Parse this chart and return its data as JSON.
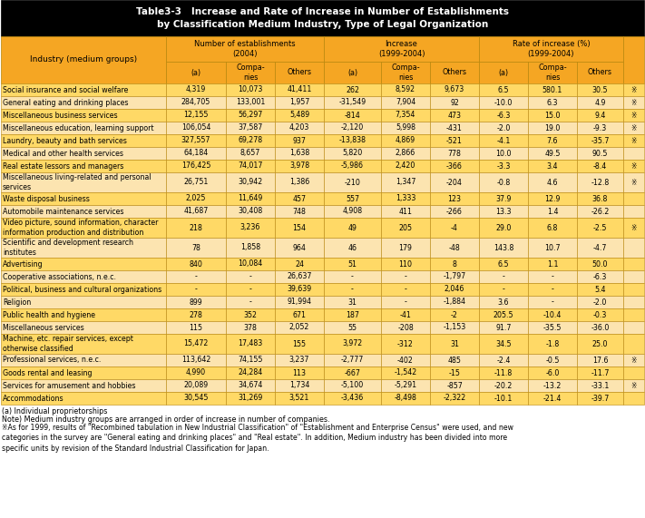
{
  "title_line1": "Table3-3   Increase and Rate of Increase in Number of Establishments",
  "title_line2": "by Classification Medium Industry, Type of Legal Organization",
  "col_groups": [
    "Number of establishments\n(2004)",
    "Increase\n(1999-2004)",
    "Rate of increase (%)\n(1999-2004)"
  ],
  "col_sub": [
    "(a)",
    "Compa-\nnies",
    "Others",
    "(a)",
    "Compa-\nnies",
    "Others",
    "(a)",
    "Compa-\nnies",
    "Others"
  ],
  "row_label_col": "Industry (medium groups)",
  "rows": [
    {
      "label": "Social insurance and social welfare",
      "values": [
        "4,319",
        "10,073",
        "41,411",
        "262",
        "8,592",
        "9,673",
        "6.5",
        "580.1",
        "30.5"
      ],
      "mark": true,
      "twolines": false
    },
    {
      "label": "General eating and drinking places",
      "values": [
        "284,705",
        "133,001",
        "1,957",
        "-31,549",
        "7,904",
        "92",
        "-10.0",
        "6.3",
        "4.9"
      ],
      "mark": true,
      "twolines": false
    },
    {
      "label": "Miscellaneous business services",
      "values": [
        "12,155",
        "56,297",
        "5,489",
        "-814",
        "7,354",
        "473",
        "-6.3",
        "15.0",
        "9.4"
      ],
      "mark": true,
      "twolines": false
    },
    {
      "label": "Miscellaneous education, learning support",
      "values": [
        "106,054",
        "37,587",
        "4,203",
        "-2,120",
        "5,998",
        "-431",
        "-2.0",
        "19.0",
        "-9.3"
      ],
      "mark": true,
      "twolines": false
    },
    {
      "label": "Laundry, beauty and bath services",
      "values": [
        "327,557",
        "69,278",
        "937",
        "-13,838",
        "4,869",
        "-521",
        "-4.1",
        "7.6",
        "-35.7"
      ],
      "mark": true,
      "twolines": false
    },
    {
      "label": "Medical and other health services",
      "values": [
        "64,184",
        "8,657",
        "1,638",
        "5,820",
        "2,866",
        "778",
        "10.0",
        "49.5",
        "90.5"
      ],
      "mark": false,
      "twolines": false
    },
    {
      "label": "Real estate lessors and managers",
      "values": [
        "176,425",
        "74,017",
        "3,978",
        "-5,986",
        "2,420",
        "-366",
        "-3.3",
        "3.4",
        "-8.4"
      ],
      "mark": true,
      "twolines": false
    },
    {
      "label": "Miscellaneous living-related and personal\nservices",
      "values": [
        "26,751",
        "30,942",
        "1,386",
        "-210",
        "1,347",
        "-204",
        "-0.8",
        "4.6",
        "-12.8"
      ],
      "mark": true,
      "twolines": true
    },
    {
      "label": "Waste disposal business",
      "values": [
        "2,025",
        "11,649",
        "457",
        "557",
        "1,333",
        "123",
        "37.9",
        "12.9",
        "36.8"
      ],
      "mark": false,
      "twolines": false
    },
    {
      "label": "Automobile maintenance services",
      "values": [
        "41,687",
        "30,408",
        "748",
        "4,908",
        "411",
        "-266",
        "13.3",
        "1.4",
        "-26.2"
      ],
      "mark": false,
      "twolines": false
    },
    {
      "label": "Video picture, sound information, character\ninformation production and distribution",
      "values": [
        "218",
        "3,236",
        "154",
        "49",
        "205",
        "-4",
        "29.0",
        "6.8",
        "-2.5"
      ],
      "mark": true,
      "twolines": true
    },
    {
      "label": "Scientific and development research\ninstitutes",
      "values": [
        "78",
        "1,858",
        "964",
        "46",
        "179",
        "-48",
        "143.8",
        "10.7",
        "-4.7"
      ],
      "mark": false,
      "twolines": true
    },
    {
      "label": "Advertising",
      "values": [
        "840",
        "10,084",
        "24",
        "51",
        "110",
        "8",
        "6.5",
        "1.1",
        "50.0"
      ],
      "mark": false,
      "twolines": false
    },
    {
      "label": "Cooperative associations, n.e.c.",
      "values": [
        "-",
        "-",
        "26,637",
        "-",
        "-",
        "-1,797",
        "-",
        "-",
        "-6.3"
      ],
      "mark": false,
      "twolines": false
    },
    {
      "label": "Political, business and cultural organizations",
      "values": [
        "-",
        "-",
        "39,639",
        "-",
        "-",
        "2,046",
        "-",
        "-",
        "5.4"
      ],
      "mark": false,
      "twolines": false
    },
    {
      "label": "Religion",
      "values": [
        "899",
        "-",
        "91,994",
        "31",
        "-",
        "-1,884",
        "3.6",
        "-",
        "-2.0"
      ],
      "mark": false,
      "twolines": false
    },
    {
      "label": "Public health and hygiene",
      "values": [
        "278",
        "352",
        "671",
        "187",
        "-41",
        "-2",
        "205.5",
        "-10.4",
        "-0.3"
      ],
      "mark": false,
      "twolines": false
    },
    {
      "label": "Miscellaneous services",
      "values": [
        "115",
        "378",
        "2,052",
        "55",
        "-208",
        "-1,153",
        "91.7",
        "-35.5",
        "-36.0"
      ],
      "mark": false,
      "twolines": false
    },
    {
      "label": "Machine, etc. repair services, except\notherwise classified",
      "values": [
        "15,472",
        "17,483",
        "155",
        "3,972",
        "-312",
        "31",
        "34.5",
        "-1.8",
        "25.0"
      ],
      "mark": false,
      "twolines": true
    },
    {
      "label": "Professional services, n.e.c.",
      "values": [
        "113,642",
        "74,155",
        "3,237",
        "-2,777",
        "-402",
        "485",
        "-2.4",
        "-0.5",
        "17.6"
      ],
      "mark": true,
      "twolines": false
    },
    {
      "label": "Goods rental and leasing",
      "values": [
        "4,990",
        "24,284",
        "113",
        "-667",
        "-1,542",
        "-15",
        "-11.8",
        "-6.0",
        "-11.7"
      ],
      "mark": false,
      "twolines": false
    },
    {
      "label": "Services for amusement and hobbies",
      "values": [
        "20,089",
        "34,674",
        "1,734",
        "-5,100",
        "-5,291",
        "-857",
        "-20.2",
        "-13.2",
        "-33.1"
      ],
      "mark": true,
      "twolines": false
    },
    {
      "label": "Accommodations",
      "values": [
        "30,545",
        "31,269",
        "3,521",
        "-3,436",
        "-8,498",
        "-2,322",
        "-10.1",
        "-21.4",
        "-39.7"
      ],
      "mark": false,
      "twolines": false
    }
  ],
  "footnote1": "(a) Individual proprietorships",
  "footnote2": "Note) Medium industry groups are arranged in order of increase in number of companies.",
  "footnote3": "※As for 1999, results of \"Recombined tabulation in New Industrial Classification\" of \"Establishment and Enterprise Census\" were used, and new\ncategories in the survey are \"General eating and drinking places\" and \"Real estate\". In addition, Medium industry has been divided into more\nspecific units by revision of the Standard Industrial Classification for Japan.",
  "title_bg": "#000000",
  "title_fg": "#ffffff",
  "header_bg": "#f5a623",
  "row_bg_a": "#ffd966",
  "row_bg_b": "#fce4b0",
  "border_color": "#b8860b"
}
